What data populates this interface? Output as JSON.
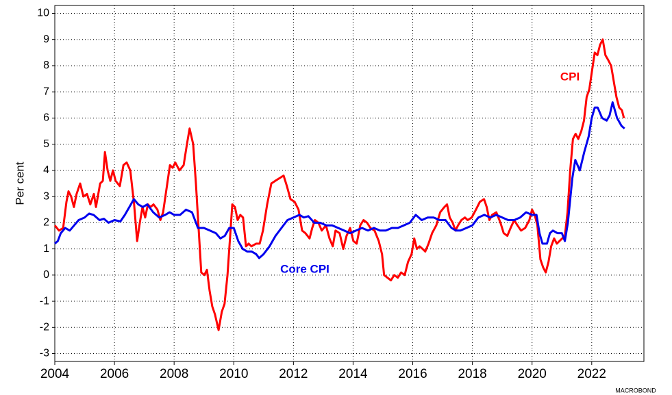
{
  "chart_data": {
    "type": "line",
    "y_label": "Per cent",
    "source": "MACROBOND",
    "xlim": [
      2004,
      2023.75
    ],
    "xticks": [
      2004,
      2006,
      2008,
      2010,
      2012,
      2014,
      2016,
      2018,
      2020,
      2022
    ],
    "ylim": [
      -3.3,
      10.3
    ],
    "yticks": [
      -3,
      -2,
      -1,
      0,
      1,
      2,
      3,
      4,
      5,
      6,
      7,
      8,
      9,
      10
    ],
    "grid": true,
    "series": [
      {
        "name": "CPI",
        "color": "#ff0000",
        "x": [
          2004.0,
          2004.14,
          2004.28,
          2004.39,
          2004.46,
          2004.55,
          2004.64,
          2004.73,
          2004.85,
          2004.96,
          2005.08,
          2005.19,
          2005.31,
          2005.38,
          2005.52,
          2005.61,
          2005.68,
          2005.77,
          2005.86,
          2005.95,
          2006.04,
          2006.18,
          2006.3,
          2006.41,
          2006.53,
          2006.66,
          2006.76,
          2006.85,
          2006.94,
          2007.03,
          2007.12,
          2007.21,
          2007.31,
          2007.44,
          2007.54,
          2007.63,
          2007.77,
          2007.86,
          2007.95,
          2008.04,
          2008.18,
          2008.32,
          2008.43,
          2008.52,
          2008.64,
          2008.73,
          2008.82,
          2008.91,
          2009.01,
          2009.1,
          2009.19,
          2009.28,
          2009.37,
          2009.49,
          2009.6,
          2009.69,
          2009.79,
          2009.88,
          2009.95,
          2010.04,
          2010.13,
          2010.22,
          2010.31,
          2010.41,
          2010.5,
          2010.59,
          2010.75,
          2010.87,
          2010.98,
          2011.12,
          2011.26,
          2011.39,
          2011.53,
          2011.67,
          2011.78,
          2011.9,
          2012.04,
          2012.17,
          2012.29,
          2012.4,
          2012.54,
          2012.63,
          2012.72,
          2012.84,
          2012.95,
          2013.09,
          2013.21,
          2013.32,
          2013.41,
          2013.55,
          2013.67,
          2013.78,
          2013.9,
          2014.01,
          2014.12,
          2014.24,
          2014.35,
          2014.47,
          2014.58,
          2014.72,
          2014.86,
          2014.97,
          2015.04,
          2015.15,
          2015.27,
          2015.38,
          2015.5,
          2015.61,
          2015.73,
          2015.84,
          2015.96,
          2016.05,
          2016.14,
          2016.23,
          2016.33,
          2016.42,
          2016.53,
          2016.65,
          2016.79,
          2016.92,
          2017.06,
          2017.15,
          2017.24,
          2017.34,
          2017.43,
          2017.52,
          2017.63,
          2017.75,
          2017.84,
          2017.98,
          2018.12,
          2018.25,
          2018.39,
          2018.48,
          2018.57,
          2018.66,
          2018.8,
          2018.94,
          2019.05,
          2019.17,
          2019.28,
          2019.4,
          2019.51,
          2019.63,
          2019.77,
          2019.91,
          2020.0,
          2020.09,
          2020.18,
          2020.28,
          2020.37,
          2020.46,
          2020.55,
          2020.64,
          2020.74,
          2020.83,
          2020.92,
          2021.01,
          2021.1,
          2021.19,
          2021.28,
          2021.37,
          2021.46,
          2021.55,
          2021.65,
          2021.74,
          2021.83,
          2021.92,
          2022.01,
          2022.1,
          2022.19,
          2022.28,
          2022.37,
          2022.46,
          2022.56,
          2022.65,
          2022.74,
          2022.83,
          2022.92,
          2023.01,
          2023.08
        ],
        "values": [
          1.9,
          1.7,
          1.8,
          2.8,
          3.2,
          3.0,
          2.6,
          3.1,
          3.5,
          3.0,
          3.1,
          2.7,
          3.1,
          2.6,
          3.5,
          3.6,
          4.7,
          4.0,
          3.6,
          4.0,
          3.6,
          3.4,
          4.2,
          4.3,
          4.0,
          2.7,
          1.3,
          2.0,
          2.6,
          2.2,
          2.7,
          2.6,
          2.7,
          2.5,
          2.1,
          2.4,
          3.5,
          4.2,
          4.1,
          4.3,
          4.0,
          4.2,
          5.0,
          5.6,
          5.0,
          3.5,
          1.8,
          0.1,
          0.0,
          0.2,
          -0.6,
          -1.2,
          -1.5,
          -2.1,
          -1.4,
          -1.1,
          0.0,
          1.5,
          2.7,
          2.6,
          2.1,
          2.3,
          2.2,
          1.1,
          1.2,
          1.1,
          1.2,
          1.2,
          1.7,
          2.7,
          3.5,
          3.6,
          3.7,
          3.8,
          3.4,
          2.9,
          2.8,
          2.5,
          1.7,
          1.6,
          1.4,
          1.8,
          2.1,
          2.0,
          1.7,
          1.9,
          1.4,
          1.1,
          1.7,
          1.6,
          1.0,
          1.5,
          1.8,
          1.3,
          1.2,
          1.9,
          2.1,
          2.0,
          1.8,
          1.7,
          1.3,
          0.8,
          0.0,
          -0.1,
          -0.2,
          0.0,
          -0.1,
          0.1,
          0.0,
          0.5,
          0.8,
          1.4,
          1.0,
          1.1,
          1.0,
          0.9,
          1.2,
          1.6,
          1.9,
          2.4,
          2.6,
          2.7,
          2.2,
          2.0,
          1.7,
          1.9,
          2.1,
          2.2,
          2.1,
          2.2,
          2.5,
          2.8,
          2.9,
          2.6,
          2.1,
          2.3,
          2.4,
          2.0,
          1.6,
          1.5,
          1.8,
          2.1,
          1.9,
          1.7,
          1.8,
          2.1,
          2.5,
          2.3,
          1.9,
          0.6,
          0.3,
          0.1,
          0.5,
          1.1,
          1.4,
          1.2,
          1.3,
          1.4,
          1.5,
          2.4,
          4.0,
          5.2,
          5.4,
          5.2,
          5.5,
          5.9,
          6.8,
          7.1,
          7.8,
          8.5,
          8.4,
          8.8,
          9.0,
          8.4,
          8.2,
          8.0,
          7.4,
          6.8,
          6.4,
          6.3,
          6.0
        ]
      },
      {
        "name": "Core CPI",
        "color": "#0000ee",
        "x": [
          2004.0,
          2004.1,
          2004.2,
          2004.35,
          2004.5,
          2004.65,
          2004.8,
          2005.0,
          2005.15,
          2005.3,
          2005.5,
          2005.65,
          2005.8,
          2006.0,
          2006.2,
          2006.35,
          2006.5,
          2006.65,
          2006.8,
          2006.95,
          2007.1,
          2007.3,
          2007.5,
          2007.7,
          2007.85,
          2008.0,
          2008.2,
          2008.4,
          2008.6,
          2008.8,
          2009.0,
          2009.2,
          2009.4,
          2009.55,
          2009.7,
          2009.85,
          2010.0,
          2010.15,
          2010.3,
          2010.45,
          2010.6,
          2010.75,
          2010.85,
          2011.0,
          2011.2,
          2011.4,
          2011.6,
          2011.8,
          2012.0,
          2012.2,
          2012.35,
          2012.5,
          2012.7,
          2012.9,
          2013.1,
          2013.3,
          2013.5,
          2013.7,
          2013.9,
          2014.1,
          2014.3,
          2014.5,
          2014.7,
          2014.9,
          2015.1,
          2015.3,
          2015.5,
          2015.7,
          2015.9,
          2016.1,
          2016.3,
          2016.5,
          2016.7,
          2016.9,
          2017.1,
          2017.3,
          2017.45,
          2017.6,
          2017.8,
          2018.0,
          2018.2,
          2018.4,
          2018.6,
          2018.8,
          2019.0,
          2019.2,
          2019.4,
          2019.6,
          2019.8,
          2020.0,
          2020.15,
          2020.25,
          2020.35,
          2020.5,
          2020.6,
          2020.7,
          2020.85,
          2021.0,
          2021.1,
          2021.2,
          2021.35,
          2021.45,
          2021.6,
          2021.75,
          2021.9,
          2022.0,
          2022.1,
          2022.2,
          2022.35,
          2022.5,
          2022.6,
          2022.7,
          2022.85,
          2023.0,
          2023.1
        ],
        "values": [
          1.2,
          1.3,
          1.6,
          1.8,
          1.7,
          1.9,
          2.1,
          2.2,
          2.35,
          2.3,
          2.1,
          2.15,
          2.0,
          2.1,
          2.05,
          2.3,
          2.6,
          2.9,
          2.7,
          2.6,
          2.7,
          2.4,
          2.2,
          2.3,
          2.4,
          2.3,
          2.3,
          2.5,
          2.4,
          1.8,
          1.8,
          1.7,
          1.6,
          1.4,
          1.5,
          1.8,
          1.8,
          1.3,
          1.0,
          0.9,
          0.9,
          0.8,
          0.65,
          0.8,
          1.1,
          1.5,
          1.8,
          2.1,
          2.2,
          2.3,
          2.2,
          2.25,
          2.0,
          2.0,
          1.9,
          1.9,
          1.8,
          1.7,
          1.6,
          1.7,
          1.8,
          1.7,
          1.8,
          1.7,
          1.7,
          1.8,
          1.8,
          1.9,
          2.0,
          2.3,
          2.1,
          2.2,
          2.2,
          2.1,
          2.1,
          1.8,
          1.7,
          1.7,
          1.8,
          1.9,
          2.2,
          2.3,
          2.2,
          2.3,
          2.2,
          2.1,
          2.1,
          2.2,
          2.4,
          2.3,
          2.3,
          1.6,
          1.2,
          1.2,
          1.6,
          1.7,
          1.6,
          1.6,
          1.3,
          2.0,
          3.7,
          4.4,
          4.0,
          4.7,
          5.3,
          6.0,
          6.4,
          6.4,
          6.0,
          5.9,
          6.1,
          6.6,
          6.0,
          5.7,
          5.6
        ]
      }
    ]
  }
}
